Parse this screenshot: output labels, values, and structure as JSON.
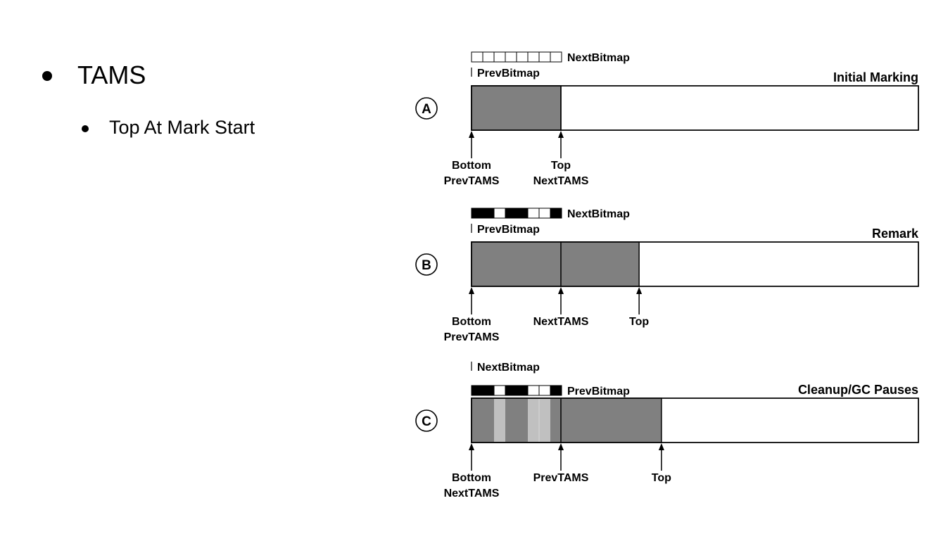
{
  "bullets": {
    "main": "TAMS",
    "sub": "Top At Mark Start"
  },
  "colors": {
    "filled": "#808080",
    "freed": "#c0c0c0",
    "empty": "#ffffff",
    "stroke": "#000000"
  },
  "panels": [
    {
      "id": "A",
      "phase": "Initial Marking",
      "bitmap_top_label": "NextBitmap",
      "bitmap_bottom_label": "PrevBitmap",
      "bitmap_bits": [
        0,
        0,
        0,
        0,
        0,
        0,
        0,
        0
      ],
      "fill_segments": [
        [
          0,
          1.0
        ]
      ],
      "divider_positions": [
        1.0
      ],
      "freed_segments": [],
      "markers": [
        {
          "pos": 0.0,
          "lines": [
            "Bottom",
            "PrevTAMS"
          ]
        },
        {
          "pos": 1.0,
          "lines": [
            "Top",
            "NextTAMS"
          ]
        }
      ]
    },
    {
      "id": "B",
      "phase": "Remark",
      "bitmap_top_label": "NextBitmap",
      "bitmap_bottom_label": "PrevBitmap",
      "bitmap_bits": [
        1,
        1,
        0,
        1,
        1,
        0,
        0,
        1
      ],
      "fill_segments": [
        [
          0,
          1.875
        ]
      ],
      "divider_positions": [
        1.0
      ],
      "freed_segments": [],
      "markers": [
        {
          "pos": 0.0,
          "lines": [
            "Bottom",
            "PrevTAMS"
          ]
        },
        {
          "pos": 1.0,
          "lines": [
            "NextTAMS"
          ]
        },
        {
          "pos": 1.875,
          "lines": [
            "Top"
          ]
        }
      ]
    },
    {
      "id": "C",
      "phase": "Cleanup/GC Pauses",
      "bitmap_top_label": "PrevBitmap",
      "bitmap_bottom_label": "NextBitmap",
      "bitmap_bits": [
        1,
        1,
        0,
        1,
        1,
        0,
        0,
        1
      ],
      "fill_segments": [
        [
          0,
          2.125
        ]
      ],
      "divider_positions": [
        1.0
      ],
      "freed_segments": [
        [
          2,
          3
        ],
        [
          5,
          7
        ]
      ],
      "markers": [
        {
          "pos": 0.0,
          "lines": [
            "Bottom",
            "NextTAMS"
          ]
        },
        {
          "pos": 1.0,
          "lines": [
            "PrevTAMS"
          ]
        },
        {
          "pos": 2.125,
          "lines": [
            "Top"
          ]
        }
      ]
    }
  ]
}
